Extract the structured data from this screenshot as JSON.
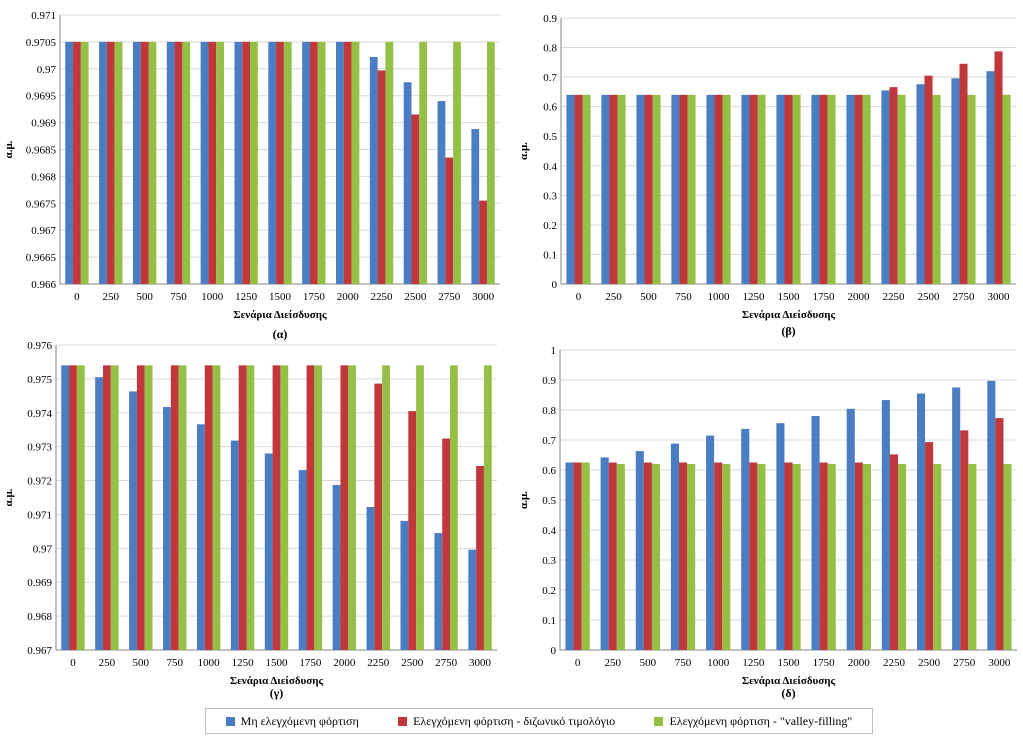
{
  "legend": {
    "items": [
      {
        "label": "Μη ελεγχόμενη φόρτιση",
        "color": "#4a7dc1"
      },
      {
        "label": "Ελεγχόμενη φόρτιση - διζωνικό τιμολόγιο",
        "color": "#c0383b"
      },
      {
        "label": "Ελεγχόμενη φόρτιση - \"valley-filling\"",
        "color": "#93c045"
      }
    ]
  },
  "chart_data": [
    {
      "type": "bar",
      "panel_label": "(α)",
      "xlabel": "Σενάρια Διείσδυσης",
      "ylabel": "α.μ.",
      "ylim": [
        0.966,
        0.971
      ],
      "yticks": [
        "0.966",
        "0.9665",
        "0.967",
        "0.9675",
        "0.968",
        "0.9685",
        "0.969",
        "0.9695",
        "0.97",
        "0.9705",
        "0.971"
      ],
      "yticks_values": [
        0.966,
        0.9665,
        0.967,
        0.9675,
        0.968,
        0.9685,
        0.969,
        0.9695,
        0.97,
        0.9705,
        0.971
      ],
      "categories": [
        "0",
        "250",
        "500",
        "750",
        "1000",
        "1250",
        "1500",
        "1750",
        "2000",
        "2250",
        "2500",
        "2750",
        "3000"
      ],
      "series": [
        {
          "name": "Μη ελεγχόμενη φόρτιση",
          "values": [
            0.9705,
            0.9705,
            0.9705,
            0.9705,
            0.9705,
            0.9705,
            0.9705,
            0.9705,
            0.9705,
            0.97022,
            0.96975,
            0.9694,
            0.96888
          ]
        },
        {
          "name": "Ελεγχόμενη φόρτιση - διζωνικό τιμολόγιο",
          "values": [
            0.9705,
            0.9705,
            0.9705,
            0.9705,
            0.9705,
            0.9705,
            0.9705,
            0.9705,
            0.9705,
            0.96997,
            0.96915,
            0.96835,
            0.96755
          ]
        },
        {
          "name": "Ελεγχόμενη φόρτιση - \"valley-filling\"",
          "values": [
            0.9705,
            0.9705,
            0.9705,
            0.9705,
            0.9705,
            0.9705,
            0.9705,
            0.9705,
            0.9705,
            0.9705,
            0.9705,
            0.9705,
            0.9705
          ]
        }
      ]
    },
    {
      "type": "bar",
      "panel_label": "(β)",
      "xlabel": "Σενάρια Διείσδυσης",
      "ylabel": "α.μ.",
      "ylim": [
        0,
        0.9
      ],
      "yticks": [
        "0",
        "0.1",
        "0.2",
        "0.3",
        "0.4",
        "0.5",
        "0.6",
        "0.7",
        "0.8",
        "0.9"
      ],
      "yticks_values": [
        0,
        0.1,
        0.2,
        0.3,
        0.4,
        0.5,
        0.6,
        0.7,
        0.8,
        0.9
      ],
      "categories": [
        "0",
        "250",
        "500",
        "750",
        "1000",
        "1250",
        "1500",
        "1750",
        "2000",
        "2250",
        "2500",
        "2750",
        "3000"
      ],
      "series": [
        {
          "name": "Μη ελεγχόμενη φόρτιση",
          "values": [
            0.64,
            0.64,
            0.64,
            0.64,
            0.64,
            0.64,
            0.64,
            0.64,
            0.64,
            0.655,
            0.676,
            0.696,
            0.72
          ]
        },
        {
          "name": "Ελεγχόμενη φόρτιση - διζωνικό τιμολόγιο",
          "values": [
            0.64,
            0.64,
            0.64,
            0.64,
            0.64,
            0.64,
            0.64,
            0.64,
            0.64,
            0.666,
            0.705,
            0.745,
            0.787
          ]
        },
        {
          "name": "Ελεγχόμενη φόρτιση - \"valley-filling\"",
          "values": [
            0.64,
            0.64,
            0.64,
            0.64,
            0.64,
            0.64,
            0.64,
            0.64,
            0.64,
            0.64,
            0.64,
            0.64,
            0.64
          ]
        }
      ]
    },
    {
      "type": "bar",
      "panel_label": "(γ)",
      "xlabel": "Σενάρια Διείσδυσης",
      "ylabel": "α.μ.",
      "ylim": [
        0.967,
        0.976
      ],
      "yticks": [
        "0.967",
        "0.968",
        "0.969",
        "0.97",
        "0.971",
        "0.972",
        "0.973",
        "0.974",
        "0.975",
        "0.976"
      ],
      "yticks_values": [
        0.967,
        0.968,
        0.969,
        0.97,
        0.971,
        0.972,
        0.973,
        0.974,
        0.975,
        0.976
      ],
      "categories": [
        "0",
        "250",
        "500",
        "750",
        "1000",
        "1250",
        "1500",
        "1750",
        "2000",
        "2250",
        "2500",
        "2750",
        "3000"
      ],
      "series": [
        {
          "name": "Μη ελεγχόμενη φόρτιση",
          "values": [
            0.9754,
            0.97505,
            0.97463,
            0.97417,
            0.97366,
            0.97318,
            0.9728,
            0.97231,
            0.97187,
            0.97122,
            0.97081,
            0.97045,
            0.96996
          ]
        },
        {
          "name": "Ελεγχόμενη φόρτιση - διζωνικό τιμολόγιο",
          "values": [
            0.9754,
            0.9754,
            0.9754,
            0.9754,
            0.9754,
            0.9754,
            0.9754,
            0.9754,
            0.9754,
            0.97486,
            0.97405,
            0.97324,
            0.97243
          ]
        },
        {
          "name": "Ελεγχόμενη φόρτιση - \"valley-filling\"",
          "values": [
            0.9754,
            0.9754,
            0.9754,
            0.9754,
            0.9754,
            0.9754,
            0.9754,
            0.9754,
            0.9754,
            0.9754,
            0.9754,
            0.9754,
            0.9754
          ]
        }
      ]
    },
    {
      "type": "bar",
      "panel_label": "(δ)",
      "xlabel": "Σενάρια Διείσδυσης",
      "ylabel": "α.μ.",
      "ylim": [
        0,
        1
      ],
      "yticks": [
        "0",
        "0.1",
        "0.2",
        "0.3",
        "0.4",
        "0.5",
        "0.6",
        "0.7",
        "0.8",
        "0.9",
        "1"
      ],
      "yticks_values": [
        0,
        0.1,
        0.2,
        0.3,
        0.4,
        0.5,
        0.6,
        0.7,
        0.8,
        0.9,
        1
      ],
      "categories": [
        "0",
        "250",
        "500",
        "750",
        "1000",
        "1250",
        "1500",
        "1750",
        "2000",
        "2250",
        "2500",
        "2750",
        "3000"
      ],
      "series": [
        {
          "name": "Μη ελεγχόμενη φόρτιση",
          "values": [
            0.625,
            0.642,
            0.663,
            0.688,
            0.715,
            0.737,
            0.756,
            0.78,
            0.804,
            0.833,
            0.855,
            0.875,
            0.897
          ]
        },
        {
          "name": "Ελεγχόμενη φόρτιση - διζωνικό τιμολόγιο",
          "values": [
            0.625,
            0.625,
            0.625,
            0.625,
            0.625,
            0.625,
            0.625,
            0.625,
            0.625,
            0.652,
            0.693,
            0.732,
            0.773
          ]
        },
        {
          "name": "Ελεγχόμενη φόρτιση - \"valley-filling\"",
          "values": [
            0.625,
            0.62,
            0.62,
            0.62,
            0.62,
            0.62,
            0.62,
            0.62,
            0.62,
            0.62,
            0.62,
            0.62,
            0.62
          ]
        }
      ]
    }
  ]
}
